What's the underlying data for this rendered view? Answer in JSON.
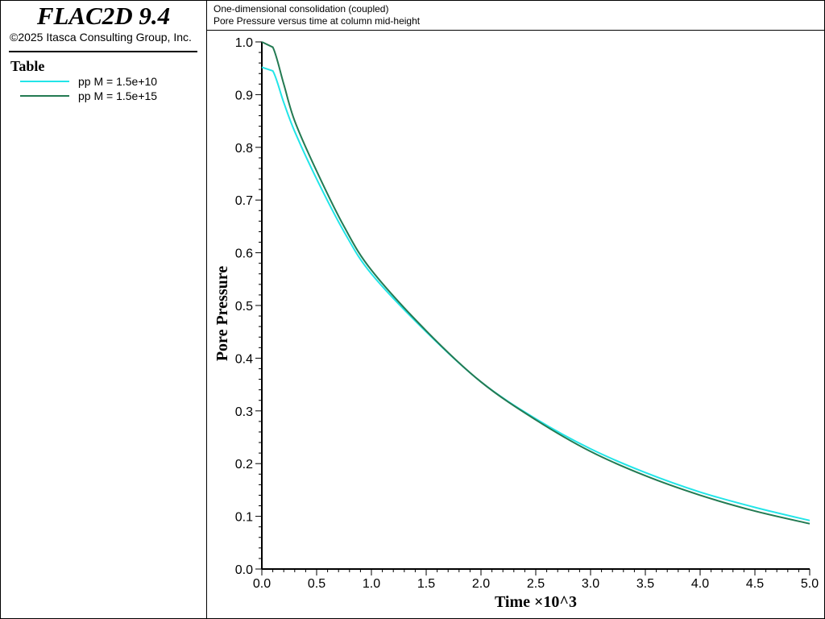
{
  "app": {
    "title": "FLAC2D 9.4",
    "copyright": "©2025 Itasca Consulting Group, Inc."
  },
  "legend": {
    "title": "Table",
    "items": [
      {
        "label": "pp M = 1.5e+10",
        "color": "#22e5e8"
      },
      {
        "label": "pp M = 1.5e+15",
        "color": "#237a52"
      }
    ]
  },
  "subtitles": [
    "One-dimensional consolidation (coupled)",
    "Pore Pressure versus time at column mid-height"
  ],
  "chart_data": {
    "type": "line",
    "xlabel": "Time ×10^3",
    "ylabel": "Pore Pressure",
    "xlim": [
      0,
      5.0
    ],
    "ylim": [
      0,
      1.0
    ],
    "x_ticks": [
      "0.0",
      "0.5",
      "1.0",
      "1.5",
      "2.0",
      "2.5",
      "3.0",
      "3.5",
      "4.0",
      "4.5",
      "5.0"
    ],
    "y_ticks": [
      "0.0",
      "0.1",
      "0.2",
      "0.3",
      "0.4",
      "0.5",
      "0.6",
      "0.7",
      "0.8",
      "0.9",
      "1.0"
    ],
    "grid": false,
    "legend_position": "left-panel",
    "series": [
      {
        "name": "pp M = 1.5e+10",
        "color": "#22e5e8",
        "x": [
          0.0,
          0.1,
          0.2,
          0.3,
          0.5,
          0.75,
          1.0,
          1.5,
          2.0,
          2.5,
          3.0,
          3.5,
          4.0,
          4.5,
          5.0
        ],
        "y": [
          0.952,
          0.945,
          0.885,
          0.83,
          0.74,
          0.64,
          0.56,
          0.45,
          0.355,
          0.285,
          0.228,
          0.183,
          0.146,
          0.117,
          0.092
        ]
      },
      {
        "name": "pp M = 1.5e+15",
        "color": "#237a52",
        "x": [
          0.0,
          0.1,
          0.2,
          0.3,
          0.5,
          0.75,
          1.0,
          1.5,
          2.0,
          2.5,
          3.0,
          3.5,
          4.0,
          4.5,
          5.0
        ],
        "y": [
          1.0,
          0.99,
          0.92,
          0.85,
          0.755,
          0.65,
          0.567,
          0.452,
          0.355,
          0.283,
          0.223,
          0.177,
          0.14,
          0.11,
          0.086
        ]
      }
    ]
  }
}
